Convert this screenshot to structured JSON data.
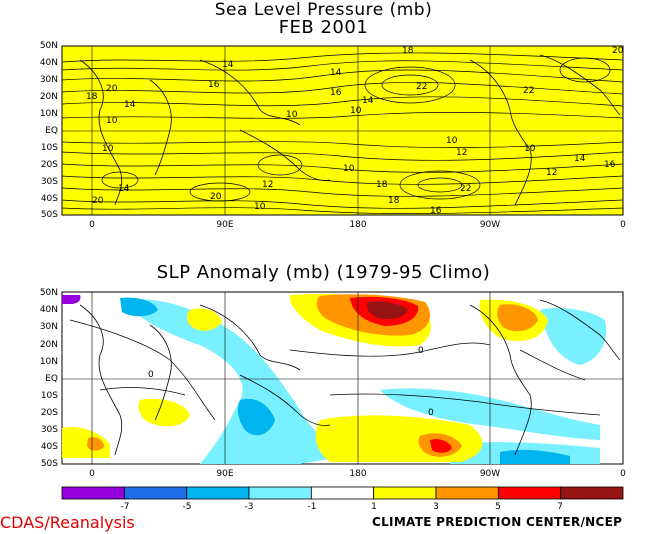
{
  "map1": {
    "title": "Sea Level Pressure (mb)",
    "subtitle": "FEB 2001",
    "lat_labels": [
      "50N",
      "40N",
      "30N",
      "20N",
      "10N",
      "EQ",
      "10S",
      "20S",
      "30S",
      "40S",
      "50S"
    ],
    "lon_labels": [
      "0",
      "90E",
      "180",
      "90W",
      "0"
    ],
    "contour_labels": [
      "10",
      "12",
      "14",
      "16",
      "18",
      "20",
      "22"
    ],
    "fill_color": "#ffff00"
  },
  "map2": {
    "title": "SLP Anomaly (mb) (1979-95 Climo)",
    "lat_labels": [
      "50N",
      "40N",
      "30N",
      "20N",
      "10N",
      "EQ",
      "10S",
      "20S",
      "30S",
      "40S",
      "50S"
    ],
    "lon_labels": [
      "0",
      "90E",
      "180",
      "90W",
      "0"
    ],
    "contour_labels": [
      "0"
    ]
  },
  "colorbar": {
    "colors": [
      "#9600dc",
      "#1e6eeb",
      "#00b4f0",
      "#78f0ff",
      "#ffffff",
      "#ffff00",
      "#ff9600",
      "#ff0000",
      "#961414"
    ],
    "labels": [
      "-7",
      "-5",
      "-3",
      "-1",
      "1",
      "3",
      "5",
      "7"
    ]
  },
  "footer": {
    "left": "CDAS/Reanalysis",
    "right": "CLIMATE PREDICTION CENTER/NCEP"
  }
}
